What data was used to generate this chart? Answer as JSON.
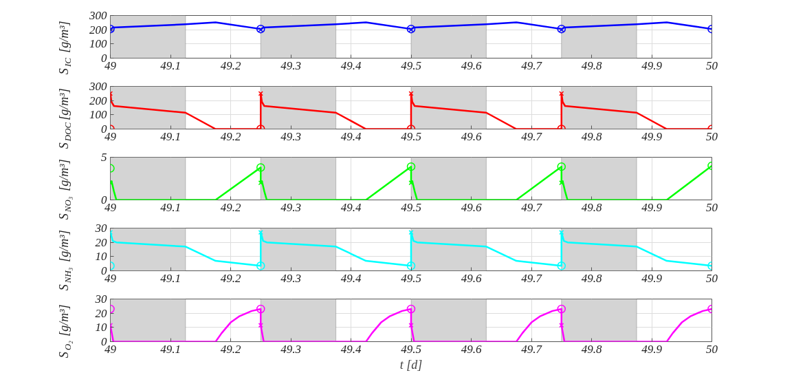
{
  "chart_data": [
    {
      "type": "line",
      "ylabel": "S$_{IC}$ [g/m³]",
      "xlim": [
        49,
        50
      ],
      "xticks": [
        49,
        49.1,
        49.2,
        49.3,
        49.4,
        49.5,
        49.6,
        49.7,
        49.8,
        49.9,
        50
      ],
      "ylim": [
        0,
        300
      ],
      "yticks": [
        0,
        100,
        200,
        300
      ],
      "grid": true,
      "bands": [
        {
          "axis": "x",
          "from": 49,
          "to": 49.125,
          "color": "#d4d4d4"
        },
        {
          "axis": "x",
          "from": 49.25,
          "to": 49.375,
          "color": "#d4d4d4"
        },
        {
          "axis": "x",
          "from": 49.5,
          "to": 49.625,
          "color": "#d4d4d4"
        },
        {
          "axis": "x",
          "from": 49.75,
          "to": 49.875,
          "color": "#d4d4d4"
        }
      ],
      "series": [
        {
          "marker": "none",
          "color": "#0000ff",
          "x": [
            49,
            49.004,
            49.125,
            49.175,
            49.25,
            49.25,
            49.254,
            49.375,
            49.425,
            49.5,
            49.5,
            49.504,
            49.625,
            49.675,
            49.75,
            49.75,
            49.754,
            49.875,
            49.925,
            50
          ],
          "values": [
            200,
            215,
            238,
            252,
            205,
            200,
            215,
            238,
            252,
            205,
            200,
            215,
            238,
            252,
            205,
            200,
            215,
            238,
            252,
            205
          ]
        },
        {
          "type": "scatter",
          "marker": "circle",
          "color": "#0000ff",
          "x": [
            49,
            49.25,
            49.5,
            49.75,
            50
          ],
          "values": [
            205,
            205,
            205,
            205,
            205
          ]
        },
        {
          "type": "scatter",
          "marker": "cross",
          "color": "#0000ff",
          "x": [
            49,
            49.25,
            49.5,
            49.75
          ],
          "values": [
            200,
            200,
            200,
            200
          ]
        }
      ]
    },
    {
      "type": "line",
      "ylabel": "S$_{DOC}$ [g/m³]",
      "xlim": [
        49,
        50
      ],
      "xticks": [
        49,
        49.1,
        49.2,
        49.3,
        49.4,
        49.5,
        49.6,
        49.7,
        49.8,
        49.9,
        50
      ],
      "ylim": [
        0,
        300
      ],
      "yticks": [
        0,
        100,
        200,
        300
      ],
      "grid": true,
      "bands": [
        {
          "axis": "x",
          "from": 49,
          "to": 49.125,
          "color": "#d4d4d4"
        },
        {
          "axis": "x",
          "from": 49.25,
          "to": 49.375,
          "color": "#d4d4d4"
        },
        {
          "axis": "x",
          "from": 49.5,
          "to": 49.625,
          "color": "#d4d4d4"
        },
        {
          "axis": "x",
          "from": 49.75,
          "to": 49.875,
          "color": "#d4d4d4"
        }
      ],
      "series": [
        {
          "marker": "none",
          "color": "#ff0000",
          "x": [
            49,
            49.002,
            49.006,
            49.125,
            49.175,
            49.25,
            49.25,
            49.252,
            49.256,
            49.375,
            49.425,
            49.5,
            49.5,
            49.502,
            49.506,
            49.625,
            49.675,
            49.75,
            49.75,
            49.752,
            49.756,
            49.875,
            49.925,
            50
          ],
          "values": [
            250,
            190,
            162,
            115,
            0,
            0,
            250,
            190,
            162,
            115,
            0,
            0,
            250,
            190,
            162,
            115,
            0,
            0,
            250,
            190,
            162,
            115,
            0,
            0
          ]
        },
        {
          "type": "scatter",
          "marker": "circle",
          "color": "#ff0000",
          "x": [
            49,
            49.25,
            49.5,
            49.75,
            50
          ],
          "values": [
            0,
            0,
            0,
            0,
            0
          ]
        },
        {
          "type": "scatter",
          "marker": "cross",
          "color": "#ff0000",
          "x": [
            49,
            49.25,
            49.5,
            49.75
          ],
          "values": [
            250,
            250,
            250,
            250
          ]
        }
      ]
    },
    {
      "type": "line",
      "ylabel": "S$_{NO₃}$ [g/m³]",
      "xlim": [
        49,
        50
      ],
      "xticks": [
        49,
        49.1,
        49.2,
        49.3,
        49.4,
        49.5,
        49.6,
        49.7,
        49.8,
        49.9,
        50
      ],
      "ylim": [
        0,
        5
      ],
      "yticks": [
        0,
        5
      ],
      "grid": true,
      "bands": [
        {
          "axis": "x",
          "from": 49,
          "to": 49.125,
          "color": "#d4d4d4"
        },
        {
          "axis": "x",
          "from": 49.25,
          "to": 49.375,
          "color": "#d4d4d4"
        },
        {
          "axis": "x",
          "from": 49.5,
          "to": 49.625,
          "color": "#d4d4d4"
        },
        {
          "axis": "x",
          "from": 49.75,
          "to": 49.875,
          "color": "#d4d4d4"
        }
      ],
      "series": [
        {
          "marker": "none",
          "color": "#00ff00",
          "x": [
            49,
            49.002,
            49.006,
            49.01,
            49.175,
            49.25,
            49.25,
            49.252,
            49.256,
            49.26,
            49.425,
            49.5,
            49.5,
            49.502,
            49.506,
            49.51,
            49.675,
            49.75,
            49.75,
            49.752,
            49.756,
            49.76,
            49.925,
            50
          ],
          "values": [
            2.0,
            2.2,
            1.0,
            0,
            0,
            3.8,
            2.0,
            2.2,
            1.0,
            0,
            0,
            3.9,
            2.0,
            2.2,
            1.0,
            0,
            0,
            3.9,
            2.0,
            2.2,
            1.0,
            0,
            0,
            4.0
          ]
        },
        {
          "type": "scatter",
          "marker": "circle",
          "color": "#00ff00",
          "x": [
            49,
            49.25,
            49.5,
            49.75,
            50
          ],
          "values": [
            3.7,
            3.8,
            3.9,
            3.9,
            4.0
          ]
        },
        {
          "type": "scatter",
          "marker": "cross",
          "color": "#00ff00",
          "x": [
            49,
            49.25,
            49.5,
            49.75
          ],
          "values": [
            2.0,
            2.0,
            2.0,
            2.0
          ]
        }
      ]
    },
    {
      "type": "line",
      "ylabel": "S$_{NH₃}$ [g/m³]",
      "xlim": [
        49,
        50
      ],
      "xticks": [
        49,
        49.1,
        49.2,
        49.3,
        49.4,
        49.5,
        49.6,
        49.7,
        49.8,
        49.9,
        50
      ],
      "ylim": [
        0,
        30
      ],
      "yticks": [
        0,
        10,
        20,
        30
      ],
      "grid": true,
      "bands": [
        {
          "axis": "x",
          "from": 49,
          "to": 49.125,
          "color": "#d4d4d4"
        },
        {
          "axis": "x",
          "from": 49.25,
          "to": 49.375,
          "color": "#d4d4d4"
        },
        {
          "axis": "x",
          "from": 49.5,
          "to": 49.625,
          "color": "#d4d4d4"
        },
        {
          "axis": "x",
          "from": 49.75,
          "to": 49.875,
          "color": "#d4d4d4"
        }
      ],
      "series": [
        {
          "marker": "none",
          "color": "#00ffff",
          "x": [
            49,
            49.004,
            49.01,
            49.125,
            49.175,
            49.25,
            49.25,
            49.254,
            49.26,
            49.375,
            49.425,
            49.5,
            49.5,
            49.504,
            49.51,
            49.625,
            49.675,
            49.75,
            49.75,
            49.754,
            49.76,
            49.875,
            49.925,
            50
          ],
          "values": [
            27,
            21,
            20,
            17,
            7,
            3.5,
            27,
            21,
            20,
            17,
            7,
            3.5,
            27,
            21,
            20,
            17,
            7,
            3.5,
            27,
            21,
            20,
            17,
            7,
            3.5
          ]
        },
        {
          "type": "scatter",
          "marker": "circle",
          "color": "#00ffff",
          "x": [
            49,
            49.25,
            49.5,
            49.75,
            50
          ],
          "values": [
            3.5,
            3.5,
            3.5,
            3.5,
            3.5
          ]
        },
        {
          "type": "scatter",
          "marker": "cross",
          "color": "#00ffff",
          "x": [
            49,
            49.25,
            49.5,
            49.75
          ],
          "values": [
            27,
            27,
            27,
            27
          ]
        }
      ]
    },
    {
      "type": "line",
      "ylabel": "S$_{O₂}$ [g/m³]",
      "xlabel": "t [d]",
      "xlim": [
        49,
        50
      ],
      "xticks": [
        49,
        49.1,
        49.2,
        49.3,
        49.4,
        49.5,
        49.6,
        49.7,
        49.8,
        49.9,
        50
      ],
      "ylim": [
        0,
        30
      ],
      "yticks": [
        0,
        10,
        20,
        30
      ],
      "grid": true,
      "bands": [
        {
          "axis": "x",
          "from": 49,
          "to": 49.125,
          "color": "#d4d4d4"
        },
        {
          "axis": "x",
          "from": 49.25,
          "to": 49.375,
          "color": "#d4d4d4"
        },
        {
          "axis": "x",
          "from": 49.5,
          "to": 49.625,
          "color": "#d4d4d4"
        },
        {
          "axis": "x",
          "from": 49.75,
          "to": 49.875,
          "color": "#d4d4d4"
        }
      ],
      "series": [
        {
          "marker": "none",
          "color": "#ff00ff",
          "x": [
            49,
            49.005,
            49.175,
            49.185,
            49.2,
            49.215,
            49.235,
            49.25,
            49.25,
            49.255,
            49.425,
            49.435,
            49.45,
            49.465,
            49.485,
            49.5,
            49.5,
            49.505,
            49.675,
            49.685,
            49.7,
            49.715,
            49.735,
            49.75,
            49.75,
            49.755,
            49.925,
            49.935,
            49.95,
            49.965,
            49.985,
            50
          ],
          "values": [
            11.5,
            0,
            0,
            6,
            13.5,
            18,
            21.6,
            23,
            11.5,
            0,
            0,
            6,
            13.5,
            18,
            21.6,
            23,
            11.5,
            0,
            0,
            6,
            13.5,
            18,
            21.6,
            23,
            11.5,
            0,
            0,
            6,
            13.5,
            18,
            21.6,
            23
          ]
        },
        {
          "type": "scatter",
          "marker": "circle",
          "color": "#ff00ff",
          "x": [
            49,
            49.25,
            49.5,
            49.75,
            50
          ],
          "values": [
            23,
            23,
            23,
            23,
            23
          ]
        },
        {
          "type": "scatter",
          "marker": "cross",
          "color": "#ff00ff",
          "x": [
            49,
            49.25,
            49.5,
            49.75
          ],
          "values": [
            11.5,
            11.5,
            11.5,
            11.5
          ]
        }
      ]
    }
  ]
}
